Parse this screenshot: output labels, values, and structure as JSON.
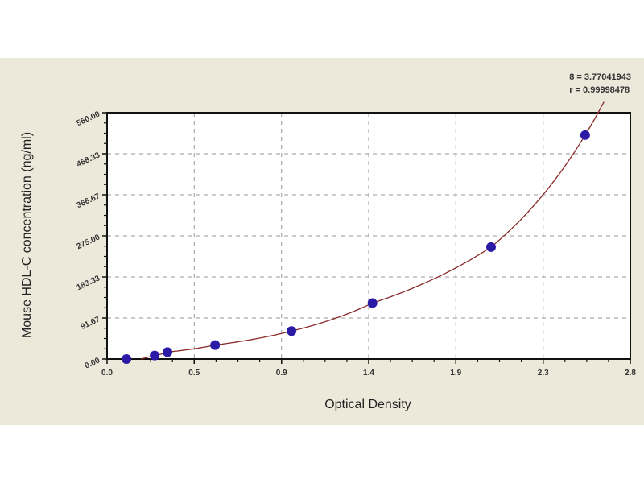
{
  "stats": {
    "line1": "8 = 3.77041943",
    "line2": "r = 0.99998478"
  },
  "chart_data": {
    "type": "scatter",
    "title": "",
    "xlabel": "Optical Density",
    "ylabel": "Mouse HDL-C concentration (ng/ml)",
    "xlim": [
      0,
      2.78
    ],
    "ylim": [
      0,
      550
    ],
    "x_ticks": [
      0.0,
      0.463,
      0.927,
      1.39,
      1.853,
      2.317,
      2.78
    ],
    "x_tick_labels": [
      "0.0",
      "0.5",
      "0.9",
      "1.4",
      "1.9",
      "2.3",
      "2.8"
    ],
    "y_ticks": [
      0,
      91.67,
      183.33,
      275,
      366.67,
      458.33,
      550
    ],
    "y_tick_labels": [
      "0.00",
      "91.67",
      "183.33",
      "275.00",
      "366.67",
      "458.33",
      "550.00"
    ],
    "grid": true,
    "points": {
      "x": [
        0.103,
        0.253,
        0.321,
        0.574,
        0.98,
        1.41,
        2.04,
        2.54
      ],
      "y": [
        0,
        7.8,
        15.6,
        31.25,
        62.5,
        125,
        250,
        500
      ]
    },
    "fit_curve": true,
    "colors": {
      "points": "#2b1aa6",
      "curve": "#8b2a2a",
      "background": "#ece8da",
      "plot": "#ffffff"
    }
  }
}
